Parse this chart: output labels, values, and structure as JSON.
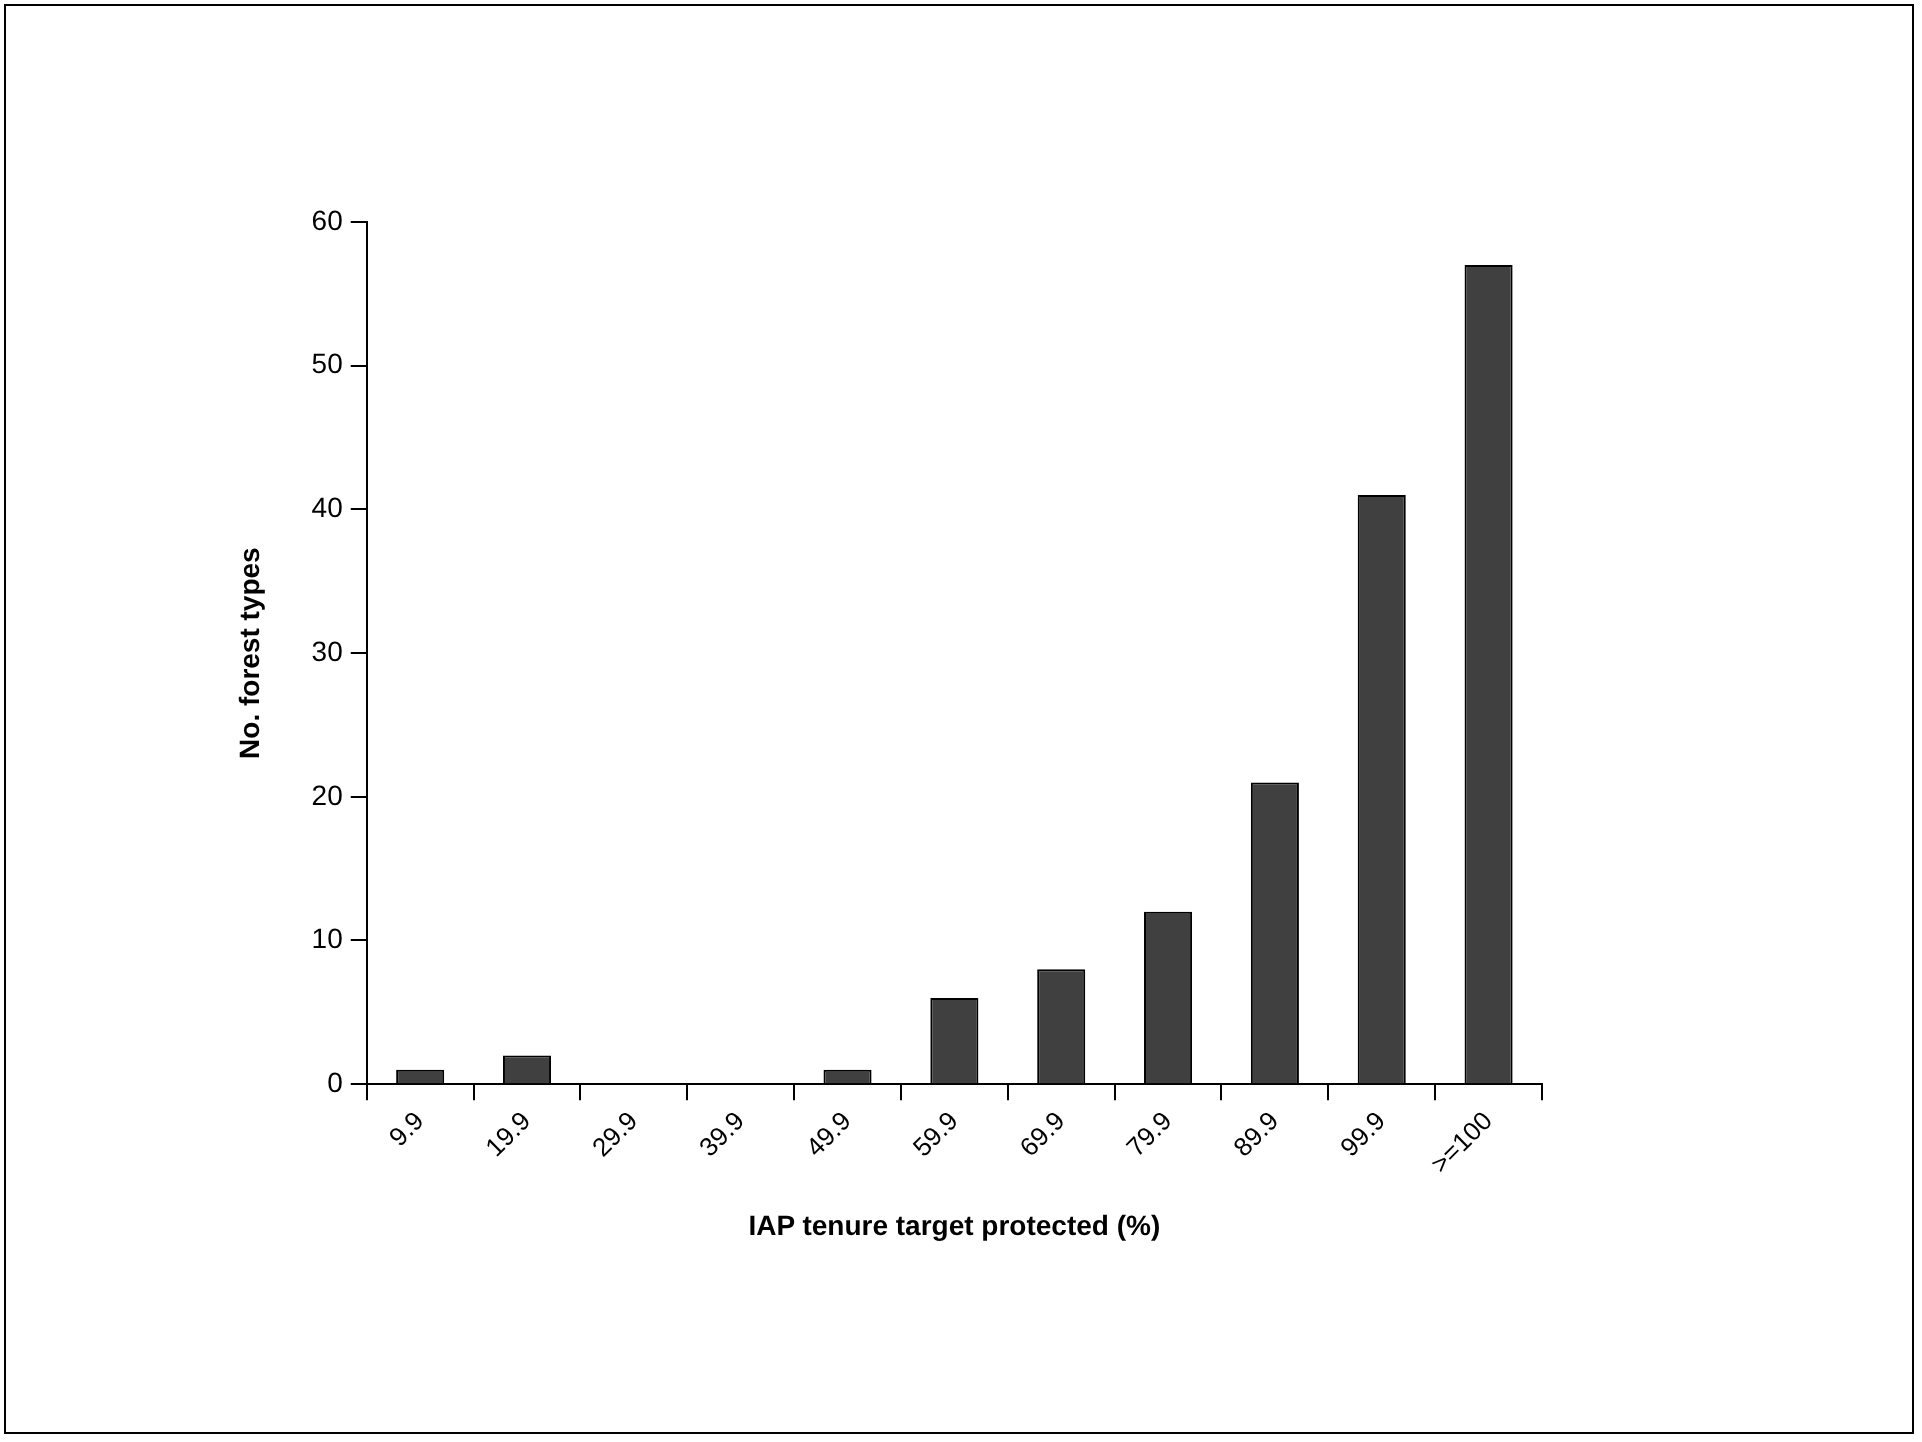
{
  "chart_data": {
    "type": "bar",
    "xlabel": "IAP tenure target protected (%)",
    "ylabel": "No. forest types",
    "categories": [
      "9.9",
      "19.9",
      "29.9",
      "39.9",
      "49.9",
      "59.9",
      "69.9",
      "79.9",
      "89.9",
      "99.9",
      ">=100"
    ],
    "values": [
      1,
      2,
      0,
      0,
      1,
      6,
      8,
      12,
      21,
      41,
      57
    ],
    "color": "#404040",
    "ylim": [
      0,
      60
    ],
    "yticks": [
      0,
      10,
      20,
      30,
      40,
      50,
      60
    ],
    "grid": false,
    "legend": false
  }
}
